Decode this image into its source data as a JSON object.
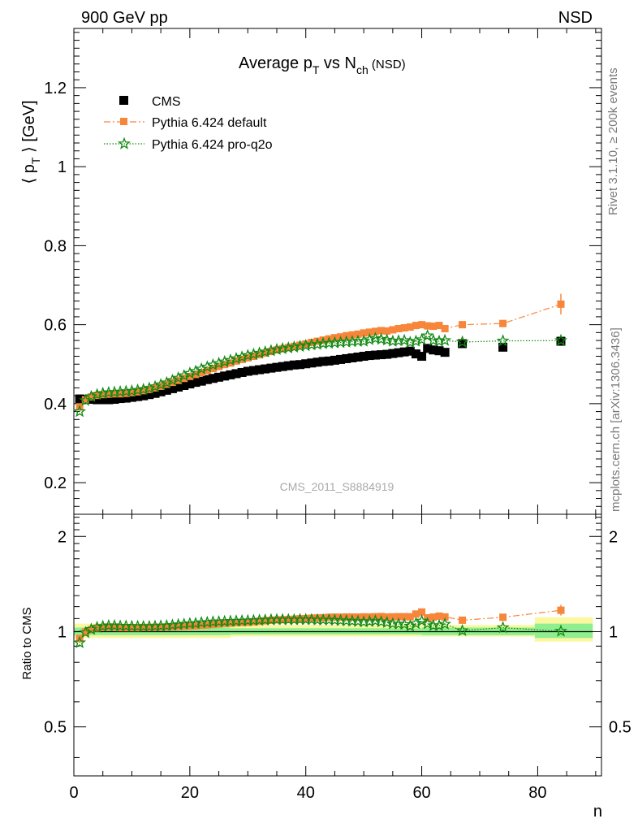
{
  "header": {
    "energy_label": "900 GeV pp",
    "process_label": "NSD"
  },
  "side_labels": {
    "rivet": "Rivet 3.1.10, ≥ 200k events",
    "mcplots": "mcplots.cern.ch [arXiv:1306.3436]"
  },
  "watermark": "CMS_2011_S8884919",
  "ratio_ylabel": "Ratio to CMS",
  "chart_data": {
    "type": "scatter",
    "title": {
      "main": "Average p",
      "sub1": "T",
      "mid": " vs N",
      "sub2": "ch",
      "tail": " (NSD)"
    },
    "xlabel": "n",
    "ylabel": {
      "pre": "⟨ p",
      "sub": "T",
      "post": " ⟩ [GeV]"
    },
    "xlim": [
      0,
      91
    ],
    "ylim": [
      0.12,
      1.35
    ],
    "ratio_ylim": [
      0.35,
      2.35
    ],
    "x_ticks": [
      0,
      20,
      40,
      60,
      80
    ],
    "y_ticks": [
      0.2,
      0.4,
      0.6,
      0.8,
      1,
      1.2
    ],
    "ratio_ticks": [
      0.5,
      1,
      2
    ],
    "legend_placement": "top-left",
    "colors": {
      "cms": "#000000",
      "pythia_default": "#f7863a",
      "pythia_q2o": "#138a13",
      "band_inner": "#8fee8f",
      "band_outer": "#fbf7a0"
    },
    "series": [
      {
        "name": "CMS",
        "marker": "square",
        "x": [
          1,
          2,
          3,
          4,
          5,
          6,
          7,
          8,
          9,
          10,
          11,
          12,
          13,
          14,
          15,
          16,
          17,
          18,
          19,
          20,
          21,
          22,
          23,
          24,
          25,
          26,
          27,
          28,
          29,
          30,
          31,
          32,
          33,
          34,
          35,
          36,
          37,
          38,
          39,
          40,
          41,
          42,
          43,
          44,
          45,
          46,
          47,
          48,
          49,
          50,
          51,
          52,
          53,
          54,
          55,
          56,
          57,
          58,
          59,
          60,
          61,
          62,
          63,
          64,
          67,
          74,
          84
        ],
        "y": [
          0.412,
          0.411,
          0.411,
          0.41,
          0.41,
          0.41,
          0.411,
          0.413,
          0.414,
          0.416,
          0.418,
          0.42,
          0.423,
          0.426,
          0.43,
          0.434,
          0.438,
          0.442,
          0.446,
          0.45,
          0.454,
          0.457,
          0.461,
          0.464,
          0.467,
          0.47,
          0.473,
          0.476,
          0.479,
          0.482,
          0.484,
          0.486,
          0.488,
          0.49,
          0.492,
          0.494,
          0.496,
          0.498,
          0.499,
          0.501,
          0.503,
          0.505,
          0.507,
          0.508,
          0.51,
          0.512,
          0.514,
          0.516,
          0.518,
          0.52,
          0.522,
          0.523,
          0.524,
          0.525,
          0.527,
          0.529,
          0.531,
          0.533,
          0.526,
          0.52,
          0.54,
          0.536,
          0.534,
          0.53,
          0.552,
          0.543,
          0.558
        ]
      },
      {
        "name": "Pythia 6.424 default",
        "marker": "square-small",
        "line": "dashdot",
        "x": [
          1,
          2,
          3,
          4,
          5,
          6,
          7,
          8,
          9,
          10,
          11,
          12,
          13,
          14,
          15,
          16,
          17,
          18,
          19,
          20,
          21,
          22,
          23,
          24,
          25,
          26,
          27,
          28,
          29,
          30,
          31,
          32,
          33,
          34,
          35,
          36,
          37,
          38,
          39,
          40,
          41,
          42,
          43,
          44,
          45,
          46,
          47,
          48,
          49,
          50,
          51,
          52,
          53,
          54,
          55,
          56,
          57,
          58,
          59,
          60,
          61,
          62,
          63,
          64,
          67,
          74,
          84
        ],
        "y": [
          0.392,
          0.41,
          0.417,
          0.421,
          0.423,
          0.424,
          0.425,
          0.425,
          0.426,
          0.428,
          0.43,
          0.433,
          0.436,
          0.44,
          0.444,
          0.449,
          0.454,
          0.459,
          0.464,
          0.469,
          0.474,
          0.479,
          0.484,
          0.489,
          0.494,
          0.499,
          0.503,
          0.508,
          0.512,
          0.516,
          0.52,
          0.524,
          0.528,
          0.532,
          0.536,
          0.539,
          0.542,
          0.545,
          0.548,
          0.551,
          0.555,
          0.558,
          0.561,
          0.564,
          0.567,
          0.569,
          0.572,
          0.574,
          0.576,
          0.579,
          0.581,
          0.583,
          0.585,
          0.584,
          0.587,
          0.59,
          0.592,
          0.594,
          0.598,
          0.6,
          0.597,
          0.596,
          0.598,
          0.59,
          0.6,
          0.603,
          0.652
        ]
      },
      {
        "name": "Pythia 6.424 pro-q2o",
        "marker": "star",
        "line": "dotted",
        "x": [
          1,
          2,
          3,
          4,
          5,
          6,
          7,
          8,
          9,
          10,
          11,
          12,
          13,
          14,
          15,
          16,
          17,
          18,
          19,
          20,
          21,
          22,
          23,
          24,
          25,
          26,
          27,
          28,
          29,
          30,
          31,
          32,
          33,
          34,
          35,
          36,
          37,
          38,
          39,
          40,
          41,
          42,
          43,
          44,
          45,
          46,
          47,
          48,
          49,
          50,
          51,
          52,
          53,
          54,
          55,
          56,
          57,
          58,
          59,
          60,
          61,
          62,
          63,
          64,
          67,
          74,
          84
        ],
        "y": [
          0.38,
          0.408,
          0.418,
          0.423,
          0.426,
          0.428,
          0.429,
          0.43,
          0.431,
          0.432,
          0.434,
          0.436,
          0.439,
          0.443,
          0.448,
          0.453,
          0.459,
          0.465,
          0.471,
          0.477,
          0.482,
          0.488,
          0.493,
          0.498,
          0.502,
          0.506,
          0.51,
          0.514,
          0.518,
          0.522,
          0.525,
          0.528,
          0.531,
          0.534,
          0.537,
          0.539,
          0.541,
          0.543,
          0.545,
          0.547,
          0.549,
          0.55,
          0.552,
          0.553,
          0.554,
          0.555,
          0.556,
          0.557,
          0.558,
          0.558,
          0.562,
          0.565,
          0.563,
          0.561,
          0.558,
          0.559,
          0.56,
          0.555,
          0.558,
          0.562,
          0.572,
          0.56,
          0.558,
          0.56,
          0.556,
          0.559,
          0.56
        ]
      }
    ]
  }
}
